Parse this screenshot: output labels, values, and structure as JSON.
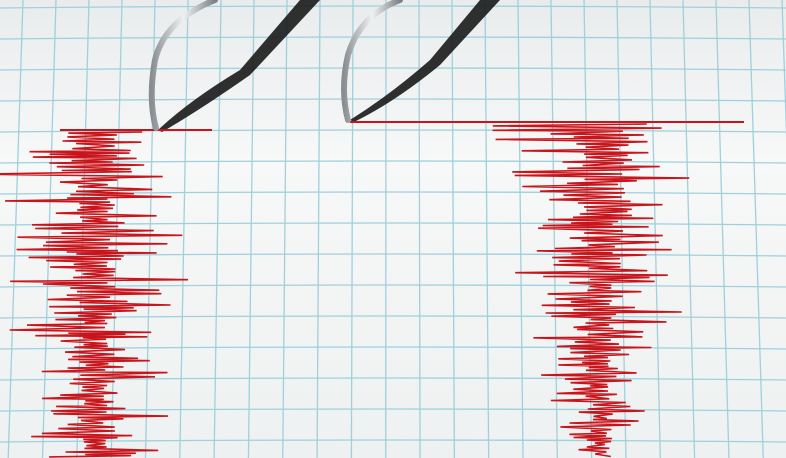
{
  "scene": {
    "paper_color": "#f4f6f6",
    "grid_color": "#9fd0dc",
    "trace_color": "#c8141a",
    "needle_color": "#b8bcc0",
    "shadow_color": "#1a1a1a"
  }
}
